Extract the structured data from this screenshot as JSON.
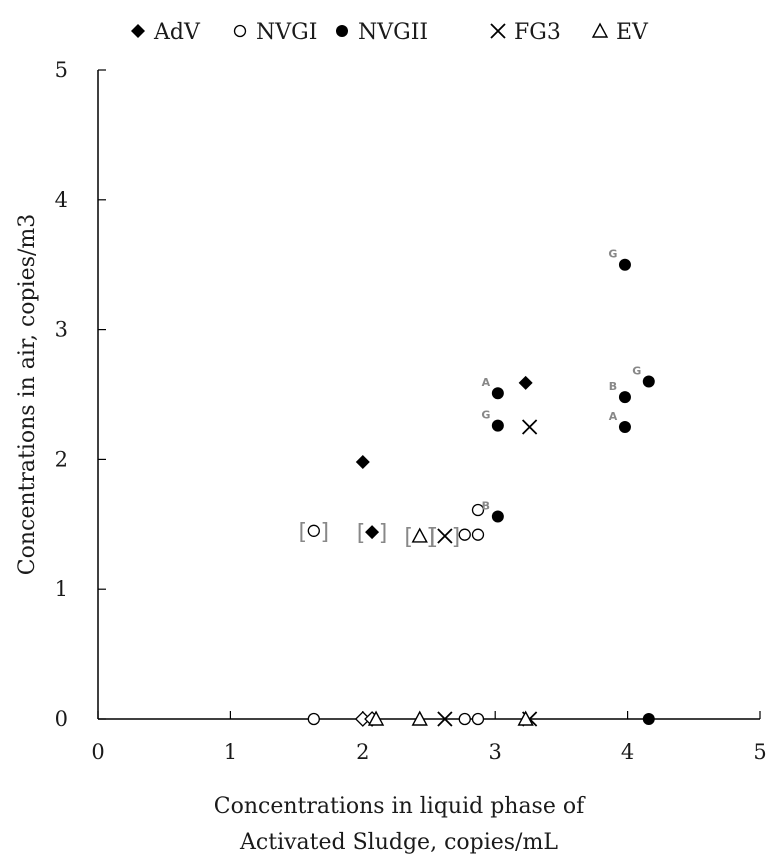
{
  "chart_data": {
    "type": "scatter",
    "xlabel": [
      "Concentrations in liquid phase of",
      "Activated Sludge, copies/mL"
    ],
    "ylabel": "Concentrations in air, copies/m3",
    "xlim": [
      0,
      5
    ],
    "ylim": [
      0,
      5
    ],
    "xticks": [
      "0",
      "1",
      "2",
      "3",
      "4",
      "5"
    ],
    "yticks": [
      "0",
      "1",
      "2",
      "3",
      "4",
      "5"
    ],
    "grid": false,
    "legend_position": "top",
    "colors": {
      "mark": "#000000",
      "axis": "#000000",
      "annotation": "#888888"
    },
    "series": [
      {
        "name": "AdV",
        "marker": "filled-diamond",
        "points": [
          {
            "x": 2.0,
            "y": 1.98
          },
          {
            "x": 3.23,
            "y": 2.59
          },
          {
            "x": 2.07,
            "y": 1.44,
            "bracketed": true
          }
        ],
        "zero_points": [
          2.0,
          2.07
        ]
      },
      {
        "name": "NVGI",
        "marker": "open-circle",
        "points": [
          {
            "x": 2.87,
            "y": 1.61
          },
          {
            "x": 1.63,
            "y": 1.45,
            "bracketed": true
          },
          {
            "x": 2.77,
            "y": 1.42
          },
          {
            "x": 2.87,
            "y": 1.42
          }
        ],
        "zero_points": [
          1.63,
          2.77,
          2.87
        ]
      },
      {
        "name": "NVGII",
        "marker": "filled-circle",
        "points": [
          {
            "x": 3.98,
            "y": 3.5,
            "label": "G"
          },
          {
            "x": 4.16,
            "y": 2.6,
            "label": "G"
          },
          {
            "x": 3.02,
            "y": 2.51,
            "label": "A"
          },
          {
            "x": 3.98,
            "y": 2.48,
            "label": "B"
          },
          {
            "x": 3.02,
            "y": 2.26,
            "label": "G"
          },
          {
            "x": 3.98,
            "y": 2.25,
            "label": "A"
          },
          {
            "x": 3.02,
            "y": 1.56,
            "label": "B"
          }
        ],
        "zero_points": [
          4.16
        ]
      },
      {
        "name": "FG3",
        "marker": "cross",
        "points": [
          {
            "x": 3.26,
            "y": 2.25
          },
          {
            "x": 2.62,
            "y": 1.41,
            "bracketed": true
          }
        ],
        "zero_points": [
          2.62,
          3.26
        ]
      },
      {
        "name": "EV",
        "marker": "open-triangle",
        "points": [
          {
            "x": 2.43,
            "y": 1.41,
            "bracketed": true
          }
        ],
        "zero_points": [
          2.1,
          2.43,
          3.23
        ]
      }
    ]
  }
}
